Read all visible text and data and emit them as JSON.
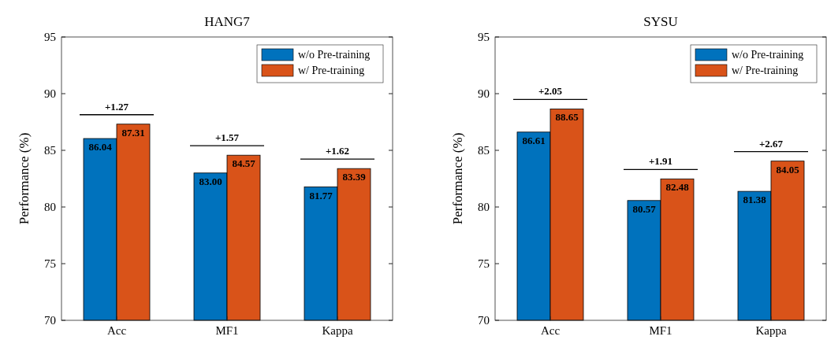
{
  "chart_data": [
    {
      "type": "bar",
      "title": "HANG7",
      "ylabel": "Performance (%)",
      "categories": [
        "Acc",
        "MF1",
        "Kappa"
      ],
      "ylim": [
        70,
        95
      ],
      "yticks": [
        70,
        75,
        80,
        85,
        90,
        95
      ],
      "legend": "top right",
      "series": [
        {
          "name": "w/o Pre-training",
          "color": "#0072bd",
          "values": [
            86.04,
            83.0,
            81.77
          ],
          "value_labels": [
            "86.04",
            "83.00",
            "81.77"
          ]
        },
        {
          "name": "w/ Pre-training",
          "color": "#d95319",
          "values": [
            87.31,
            84.57,
            83.39
          ],
          "value_labels": [
            "87.31",
            "84.57",
            "83.39"
          ]
        }
      ],
      "annotations": [
        "+1.27",
        "+1.57",
        "+1.62"
      ]
    },
    {
      "type": "bar",
      "title": "SYSU",
      "ylabel": "Performance (%)",
      "categories": [
        "Acc",
        "MF1",
        "Kappa"
      ],
      "ylim": [
        70,
        95
      ],
      "yticks": [
        70,
        75,
        80,
        85,
        90,
        95
      ],
      "legend": "top right",
      "series": [
        {
          "name": "w/o Pre-training",
          "color": "#0072bd",
          "values": [
            86.61,
            80.57,
            81.38
          ],
          "value_labels": [
            "86.61",
            "80.57",
            "81.38"
          ]
        },
        {
          "name": "w/ Pre-training",
          "color": "#d95319",
          "values": [
            88.65,
            82.48,
            84.05
          ],
          "value_labels": [
            "88.65",
            "82.48",
            "84.05"
          ]
        }
      ],
      "annotations": [
        "+2.05",
        "+1.91",
        "+2.67"
      ]
    }
  ]
}
